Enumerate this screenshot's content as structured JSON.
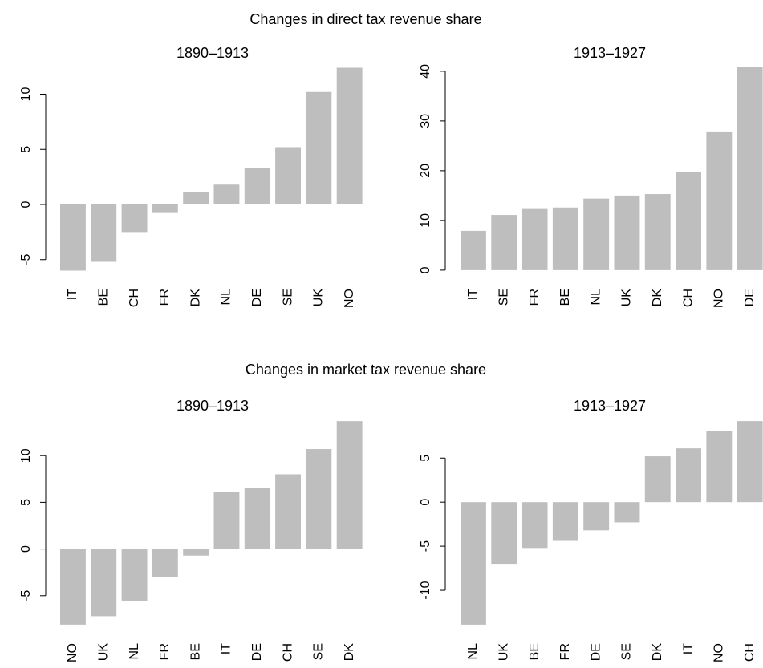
{
  "chart_data": [
    {
      "type": "bar",
      "suptitle": "Changes in direct tax revenue share",
      "title": "1890–1913",
      "categories": [
        "IT",
        "BE",
        "CH",
        "FR",
        "DK",
        "NL",
        "DE",
        "SE",
        "UK",
        "NO"
      ],
      "values": [
        -6.0,
        -5.2,
        -2.5,
        -0.7,
        1.1,
        1.8,
        3.3,
        5.2,
        10.2,
        12.4
      ],
      "color": "#bebebe",
      "ylim": [
        -6.8,
        13.2
      ],
      "yticks": [
        -5,
        0,
        5,
        10
      ]
    },
    {
      "type": "bar",
      "title": "1913–1927",
      "categories": [
        "IT",
        "SE",
        "FR",
        "BE",
        "NL",
        "UK",
        "DK",
        "CH",
        "NO",
        "DE"
      ],
      "values": [
        7.9,
        11.1,
        12.3,
        12.6,
        14.4,
        15.0,
        15.3,
        19.7,
        27.9,
        40.8
      ],
      "color": "#bebebe",
      "ylim": [
        -1.63,
        42.4
      ],
      "yticks": [
        0,
        10,
        20,
        30,
        40
      ]
    },
    {
      "type": "bar",
      "suptitle": "Changes in market tax revenue share",
      "title": "1890–1913",
      "categories": [
        "NO",
        "UK",
        "NL",
        "FR",
        "BE",
        "IT",
        "DE",
        "CH",
        "SE",
        "DK"
      ],
      "values": [
        -8.1,
        -7.2,
        -5.6,
        -3.0,
        -0.7,
        6.1,
        6.5,
        8.0,
        10.7,
        13.7
      ],
      "color": "#bebebe",
      "ylim": [
        -8.97,
        14.57
      ],
      "yticks": [
        -5,
        0,
        5,
        10
      ]
    },
    {
      "type": "bar",
      "title": "1913–1927",
      "categories": [
        "NL",
        "UK",
        "BE",
        "FR",
        "DE",
        "SE",
        "DK",
        "IT",
        "NO",
        "CH"
      ],
      "values": [
        -13.9,
        -7.0,
        -5.2,
        -4.4,
        -3.2,
        -2.3,
        5.2,
        6.1,
        8.1,
        9.2
      ],
      "color": "#bebebe",
      "ylim": [
        -14.82,
        10.12
      ],
      "yticks": [
        -10,
        -5,
        0,
        5
      ]
    }
  ]
}
